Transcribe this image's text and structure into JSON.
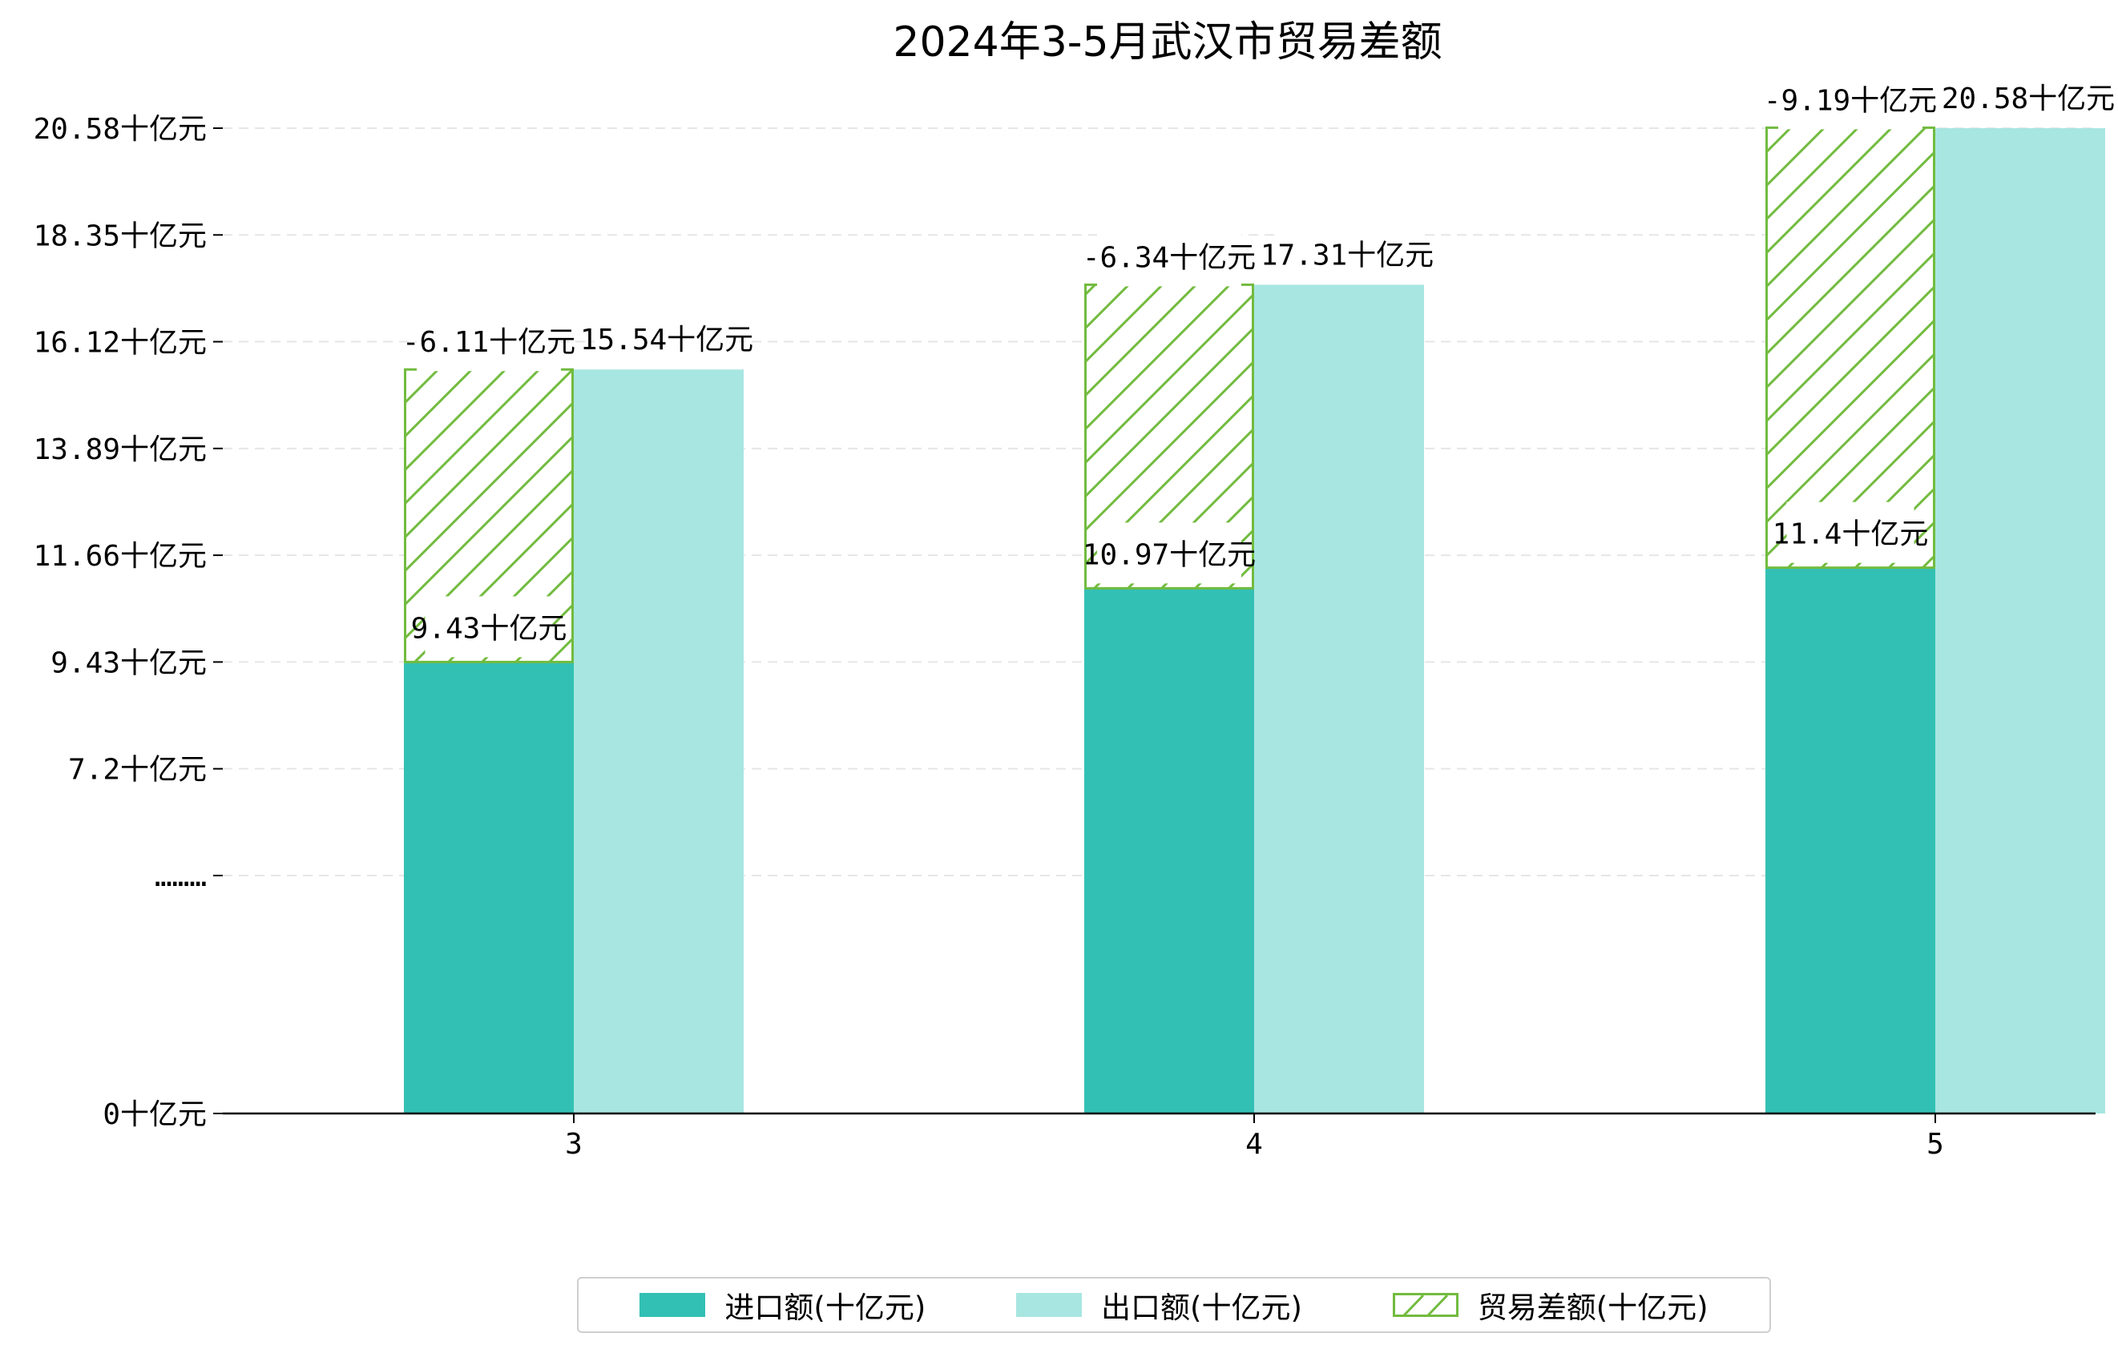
{
  "chart_data": {
    "type": "bar",
    "title": "2024年3-5月武汉市贸易差额",
    "categories": [
      "3",
      "4",
      "5"
    ],
    "series": [
      {
        "name": "进口额(十亿元)",
        "values": [
          9.43,
          10.97,
          11.4
        ],
        "labels": [
          "9.43十亿元",
          "10.97十亿元",
          "11.4十亿元"
        ],
        "color": "#33c0b4"
      },
      {
        "name": "出口额(十亿元)",
        "values": [
          15.54,
          17.31,
          20.58
        ],
        "labels": [
          "15.54十亿元",
          "17.31十亿元",
          "20.58十亿元"
        ],
        "color": "#a8e6e1"
      },
      {
        "name": "贸易差额(十亿元)",
        "values": [
          -6.11,
          -6.34,
          -9.19
        ],
        "labels": [
          "-6.11十亿元",
          "-6.34十亿元",
          "-9.19十亿元"
        ],
        "color": "#72bb3f"
      }
    ],
    "y_ticks": [
      "0十亿元",
      "………",
      "7.2十亿元",
      "9.43十亿元",
      "11.66十亿元",
      "13.89十亿元",
      "16.12十亿元",
      "18.35十亿元",
      "20.58十亿元"
    ],
    "y_tick_values": [
      0,
      4.97,
      7.2,
      9.43,
      11.66,
      13.89,
      16.12,
      18.35,
      20.58
    ],
    "ylim": [
      0,
      21.2
    ],
    "grid": "horizontal dashed",
    "legend_position": "bottom-center"
  }
}
